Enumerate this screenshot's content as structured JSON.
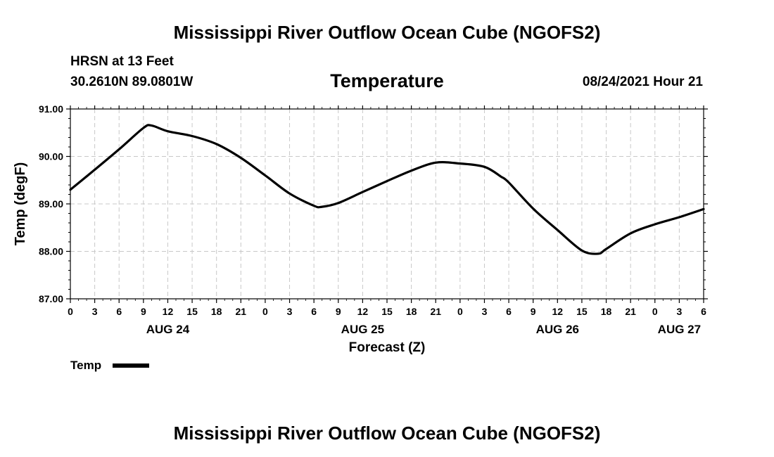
{
  "header": {
    "title": "Mississippi River Outflow Ocean Cube (NGOFS2)",
    "station_name": "HRSN at 13 Feet",
    "station_coords": "30.2610N  89.0801W",
    "variable": "Temperature",
    "timestamp": "08/24/2021 Hour 21"
  },
  "legend": {
    "label": "Temp"
  },
  "footer": {
    "title": "Mississippi River Outflow Ocean Cube (NGOFS2)"
  },
  "chart_data": {
    "type": "line",
    "title": "Temperature",
    "xlabel": "Forecast (Z)",
    "ylabel": "Temp (degF)",
    "xlim": [
      0,
      78
    ],
    "ylim": [
      87,
      91
    ],
    "grid": true,
    "legend_position": "bottom-left",
    "yticks": [
      87,
      88,
      89,
      90,
      91
    ],
    "ytick_labels": [
      "87.00",
      "88.00",
      "89.00",
      "90.00",
      "91.00"
    ],
    "xticks": [
      0,
      3,
      6,
      9,
      12,
      15,
      18,
      21,
      24,
      27,
      30,
      33,
      36,
      39,
      42,
      45,
      48,
      51,
      54,
      57,
      60,
      63,
      66,
      69,
      72,
      75,
      78
    ],
    "xtick_labels": [
      "0",
      "3",
      "6",
      "9",
      "12",
      "15",
      "18",
      "21",
      "0",
      "3",
      "6",
      "9",
      "12",
      "15",
      "18",
      "21",
      "0",
      "3",
      "6",
      "9",
      "12",
      "15",
      "18",
      "21",
      "0",
      "3",
      "6"
    ],
    "day_labels": [
      {
        "x": 12,
        "label": "AUG 24"
      },
      {
        "x": 36,
        "label": "AUG 25"
      },
      {
        "x": 60,
        "label": "AUG 26"
      },
      {
        "x": 75,
        "label": "AUG 27"
      }
    ],
    "series": [
      {
        "name": "Temp",
        "color": "#000000",
        "x": [
          0,
          3,
          6,
          9,
          10,
          12,
          15,
          18,
          21,
          24,
          27,
          30,
          31,
          33,
          36,
          39,
          42,
          45,
          48,
          51,
          53,
          54,
          57,
          60,
          63,
          65,
          66,
          69,
          72,
          75,
          78
        ],
        "y": [
          89.3,
          89.72,
          90.15,
          90.6,
          90.65,
          90.53,
          90.43,
          90.26,
          89.97,
          89.6,
          89.22,
          88.96,
          88.94,
          89.02,
          89.25,
          89.48,
          89.7,
          89.87,
          89.85,
          89.78,
          89.58,
          89.45,
          88.9,
          88.45,
          88.02,
          87.95,
          88.05,
          88.38,
          88.57,
          88.72,
          88.89
        ]
      }
    ]
  }
}
